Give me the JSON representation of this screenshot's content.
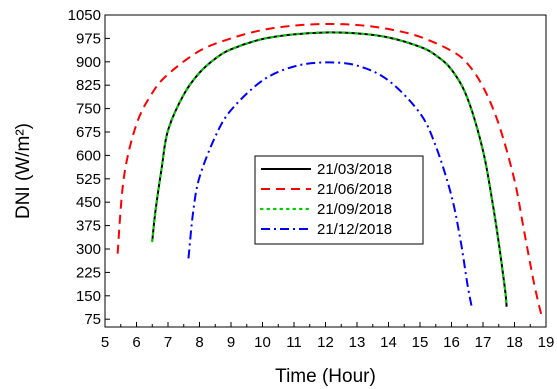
{
  "chart_data": {
    "type": "line",
    "xlabel": "Time (Hour)",
    "ylabel": "DNI (W/m²)",
    "xlim": [
      5,
      19
    ],
    "ylim": [
      50,
      1050
    ],
    "xticks": [
      5,
      6,
      7,
      8,
      9,
      10,
      11,
      12,
      13,
      14,
      15,
      16,
      17,
      18,
      19
    ],
    "yticks": [
      75,
      150,
      225,
      300,
      375,
      450,
      525,
      600,
      675,
      750,
      825,
      900,
      975,
      1050
    ],
    "grid": false,
    "legend_position": "center-right",
    "series": [
      {
        "name": "21/03/2018",
        "color": "#000000",
        "style": "solid",
        "x": [
          6.5,
          6.6,
          6.8,
          7.0,
          7.5,
          8.0,
          8.5,
          9.0,
          10.0,
          11.0,
          12.0,
          13.0,
          14.0,
          15.0,
          15.5,
          16.0,
          16.5,
          17.0,
          17.3,
          17.5,
          17.7,
          17.75
        ],
        "y": [
          325,
          420,
          560,
          680,
          795,
          865,
          910,
          940,
          973,
          988,
          994,
          991,
          978,
          948,
          921,
          875,
          785,
          615,
          450,
          320,
          170,
          115
        ]
      },
      {
        "name": "21/06/2018",
        "color": "#ff0000",
        "style": "dashed",
        "x": [
          5.4,
          5.6,
          6.0,
          6.5,
          7.0,
          8.0,
          9.0,
          10.0,
          11.0,
          12.0,
          13.0,
          14.0,
          15.0,
          16.0,
          16.5,
          17.0,
          17.5,
          18.0,
          18.3,
          18.6,
          18.8,
          18.9
        ],
        "y": [
          285,
          530,
          700,
          800,
          860,
          935,
          975,
          1002,
          1016,
          1021,
          1018,
          1005,
          980,
          935,
          895,
          820,
          700,
          520,
          360,
          200,
          110,
          75
        ]
      },
      {
        "name": "21/09/2018",
        "color": "#00cc00",
        "style": "dotted",
        "x": [
          6.5,
          6.6,
          6.8,
          7.0,
          7.5,
          8.0,
          8.5,
          9.0,
          10.0,
          11.0,
          12.0,
          13.0,
          14.0,
          15.0,
          15.5,
          16.0,
          16.5,
          17.0,
          17.3,
          17.5,
          17.7,
          17.75
        ],
        "y": [
          325,
          420,
          560,
          680,
          795,
          865,
          910,
          940,
          973,
          988,
          994,
          991,
          978,
          948,
          921,
          875,
          785,
          615,
          450,
          320,
          170,
          115
        ]
      },
      {
        "name": "21/12/2018",
        "color": "#0000ff",
        "style": "dashdot",
        "x": [
          7.65,
          7.8,
          8.0,
          8.5,
          9.0,
          10.0,
          11.0,
          12.0,
          13.0,
          14.0,
          15.0,
          15.5,
          16.0,
          16.3,
          16.5,
          16.65
        ],
        "y": [
          270,
          420,
          530,
          660,
          745,
          840,
          885,
          898,
          888,
          840,
          735,
          630,
          470,
          320,
          190,
          110
        ]
      }
    ]
  }
}
